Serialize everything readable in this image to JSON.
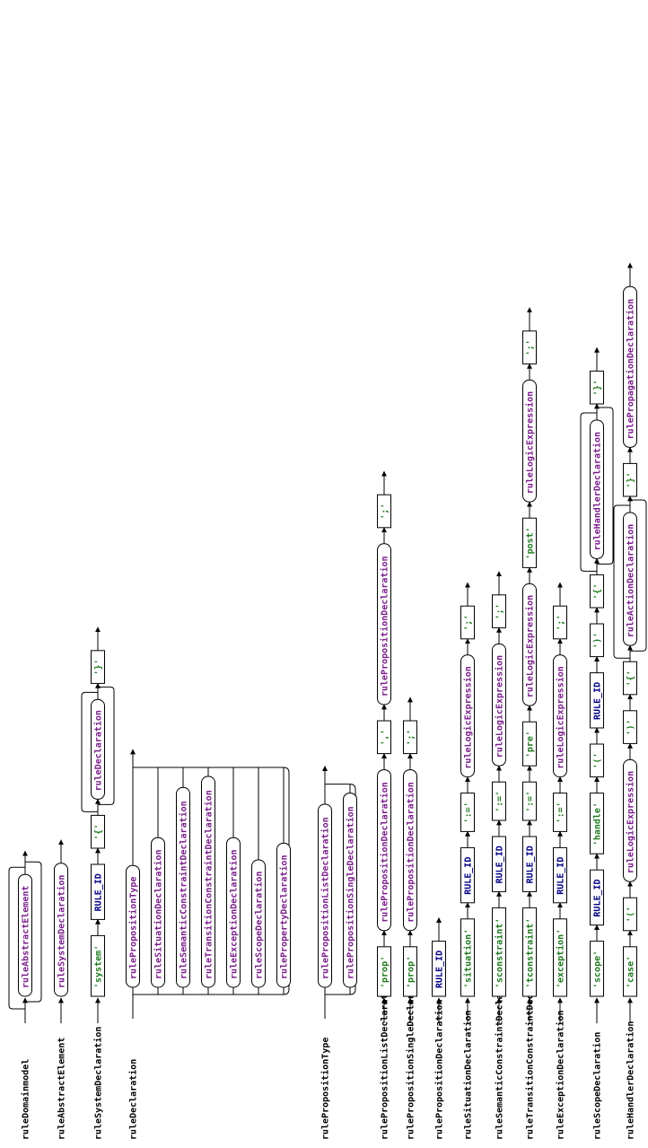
{
  "colors": {
    "nonterminal": "#7a1f8a",
    "keyword": "#1f7a1f",
    "token": "#000080",
    "line": "#000000",
    "background": "#ffffff"
  },
  "rules": [
    {
      "name": "ruleDomainmodel",
      "layout": "loop",
      "items": [
        {
          "kind": "nt",
          "text": "ruleAbstractElement"
        }
      ]
    },
    {
      "name": "ruleAbstractElement",
      "layout": "seq",
      "items": [
        {
          "kind": "nt",
          "text": "ruleSystemDeclaration"
        }
      ]
    },
    {
      "name": "ruleSystemDeclaration",
      "layout": "seq",
      "items": [
        {
          "kind": "kw",
          "text": "'system'"
        },
        {
          "kind": "tok",
          "text": "RULE_ID"
        },
        {
          "kind": "kw",
          "text": "'{'"
        },
        {
          "kind": "nt",
          "text": "ruleDeclaration",
          "loop": true
        },
        {
          "kind": "kw",
          "text": "'}'"
        }
      ]
    },
    {
      "name": "ruleDeclaration",
      "layout": "choice",
      "items": [
        {
          "kind": "nt",
          "text": "rulePropositionType"
        },
        {
          "kind": "nt",
          "text": "ruleSituationDeclaration"
        },
        {
          "kind": "nt",
          "text": "ruleSemanticConstraintDeclaration"
        },
        {
          "kind": "nt",
          "text": "ruleTransitionConstraintDeclaration"
        },
        {
          "kind": "nt",
          "text": "ruleExceptionDeclaration"
        },
        {
          "kind": "nt",
          "text": "ruleScopeDeclaration"
        },
        {
          "kind": "nt",
          "text": "rulePropertyDeclaration"
        }
      ]
    },
    {
      "name": "rulePropositionType",
      "layout": "choice",
      "items": [
        {
          "kind": "nt",
          "text": "rulePropositionListDeclaration"
        },
        {
          "kind": "nt",
          "text": "rulePropositionSingleDeclaration"
        }
      ]
    },
    {
      "name": "rulePropositionListDeclaration",
      "layout": "seq",
      "items": [
        {
          "kind": "kw",
          "text": "'prop'"
        },
        {
          "kind": "nt",
          "text": "rulePropositionDeclaration"
        },
        {
          "kind": "kw",
          "text": "','"
        },
        {
          "kind": "nt",
          "text": "rulePropositionDeclaration"
        },
        {
          "kind": "kw",
          "text": "';'"
        }
      ]
    },
    {
      "name": "rulePropositionSingleDeclaration",
      "layout": "seq",
      "items": [
        {
          "kind": "kw",
          "text": "'prop'"
        },
        {
          "kind": "nt",
          "text": "rulePropositionDeclaration"
        },
        {
          "kind": "kw",
          "text": "';'"
        }
      ]
    },
    {
      "name": "rulePropositionDeclaration",
      "layout": "seq",
      "items": [
        {
          "kind": "tok",
          "text": "RULE_ID"
        }
      ]
    },
    {
      "name": "ruleSituationDeclaration",
      "layout": "seq",
      "items": [
        {
          "kind": "kw",
          "text": "'situation'"
        },
        {
          "kind": "tok",
          "text": "RULE_ID"
        },
        {
          "kind": "kw",
          "text": "':='"
        },
        {
          "kind": "nt",
          "text": "ruleLogicExpression"
        },
        {
          "kind": "kw",
          "text": "';'"
        }
      ]
    },
    {
      "name": "ruleSemanticConstraintDeclaration",
      "layout": "seq",
      "items": [
        {
          "kind": "kw",
          "text": "'sconstraint'"
        },
        {
          "kind": "tok",
          "text": "RULE_ID"
        },
        {
          "kind": "kw",
          "text": "':='"
        },
        {
          "kind": "nt",
          "text": "ruleLogicExpression"
        },
        {
          "kind": "kw",
          "text": "';'"
        }
      ]
    },
    {
      "name": "ruleTransitionConstraintDeclaration",
      "layout": "seq",
      "items": [
        {
          "kind": "kw",
          "text": "'tconstraint'"
        },
        {
          "kind": "tok",
          "text": "RULE_ID"
        },
        {
          "kind": "kw",
          "text": "':='"
        },
        {
          "kind": "kw",
          "text": "'pre'"
        },
        {
          "kind": "nt",
          "text": "ruleLogicExpression"
        },
        {
          "kind": "kw",
          "text": "'post'"
        },
        {
          "kind": "nt",
          "text": "ruleLogicExpression"
        },
        {
          "kind": "kw",
          "text": "';'"
        }
      ]
    },
    {
      "name": "ruleExceptionDeclaration",
      "layout": "seq",
      "items": [
        {
          "kind": "kw",
          "text": "'exception'"
        },
        {
          "kind": "tok",
          "text": "RULE_ID"
        },
        {
          "kind": "kw",
          "text": "':='"
        },
        {
          "kind": "nt",
          "text": "ruleLogicExpression"
        },
        {
          "kind": "kw",
          "text": "';'"
        }
      ]
    },
    {
      "name": "ruleScopeDeclaration",
      "layout": "seq",
      "items": [
        {
          "kind": "kw",
          "text": "'scope'"
        },
        {
          "kind": "tok",
          "text": "RULE_ID"
        },
        {
          "kind": "kw",
          "text": "'handle'"
        },
        {
          "kind": "kw",
          "text": "'('"
        },
        {
          "kind": "tok",
          "text": "RULE_ID"
        },
        {
          "kind": "kw",
          "text": "')'"
        },
        {
          "kind": "kw",
          "text": "'{'"
        },
        {
          "kind": "nt",
          "text": "ruleHandlerDeclaration",
          "loop": true
        },
        {
          "kind": "kw",
          "text": "'}'"
        }
      ]
    },
    {
      "name": "ruleHandlerDeclaration",
      "layout": "seq",
      "items": [
        {
          "kind": "kw",
          "text": "'case'"
        },
        {
          "kind": "kw",
          "text": "'('"
        },
        {
          "kind": "nt",
          "text": "ruleLogicExpression"
        },
        {
          "kind": "kw",
          "text": "')'"
        },
        {
          "kind": "kw",
          "text": "'{'"
        },
        {
          "kind": "nt",
          "text": "ruleActionDeclaration",
          "loop": true
        },
        {
          "kind": "kw",
          "text": "'}'"
        },
        {
          "kind": "nt",
          "text": "rulePropagationDeclaration"
        }
      ]
    }
  ]
}
